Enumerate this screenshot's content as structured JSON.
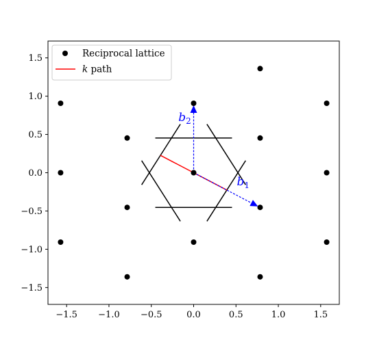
{
  "chart_data": {
    "type": "scatter",
    "xlim": [
      -1.72,
      1.72
    ],
    "ylim": [
      -1.72,
      1.72
    ],
    "xticks": [
      -1.5,
      -1.0,
      -0.5,
      0.0,
      0.5,
      1.0,
      1.5
    ],
    "yticks": [
      -1.5,
      -1.0,
      -0.5,
      0.0,
      0.5,
      1.0,
      1.5
    ],
    "xtick_labels": [
      "−1.5",
      "−1.0",
      "−0.5",
      "0.0",
      "0.5",
      "1.0",
      "1.5"
    ],
    "ytick_labels": [
      "−1.5",
      "−1.0",
      "−0.5",
      "0.0",
      "0.5",
      "1.0",
      "1.5"
    ],
    "grid": false,
    "legend": {
      "placement": "top-left",
      "entries": [
        {
          "label": "Reciprocal lattice",
          "marker": "dot",
          "color": "#000000"
        },
        {
          "label_italic": "k",
          "label_rest": " path",
          "marker": "line",
          "color": "#ff0000"
        }
      ]
    },
    "lattice_points": [
      {
        "x": -1.571,
        "y": 0.907
      },
      {
        "x": -1.571,
        "y": 0.0
      },
      {
        "x": -1.571,
        "y": -0.907
      },
      {
        "x": -0.785,
        "y": 0.453
      },
      {
        "x": -0.785,
        "y": -0.453
      },
      {
        "x": -0.785,
        "y": -1.36
      },
      {
        "x": 0.0,
        "y": 0.907
      },
      {
        "x": 0.0,
        "y": 0.0
      },
      {
        "x": 0.0,
        "y": -0.907
      },
      {
        "x": 0.785,
        "y": 1.36
      },
      {
        "x": 0.785,
        "y": 0.453
      },
      {
        "x": 0.785,
        "y": -0.453
      },
      {
        "x": 0.785,
        "y": -1.36
      },
      {
        "x": 1.571,
        "y": 0.907
      },
      {
        "x": 1.571,
        "y": 0.0
      },
      {
        "x": 1.571,
        "y": -0.907
      }
    ],
    "lattice_color": "#000000",
    "brillouin_zone_segments": [
      [
        [
          -0.453,
          0.453
        ],
        [
          0.453,
          0.453
        ]
      ],
      [
        [
          -0.453,
          -0.453
        ],
        [
          0.453,
          -0.453
        ]
      ],
      [
        [
          0.157,
          0.634
        ],
        [
          0.614,
          -0.158
        ]
      ],
      [
        [
          -0.157,
          -0.634
        ],
        [
          -0.614,
          0.158
        ]
      ],
      [
        [
          -0.157,
          0.634
        ],
        [
          -0.614,
          -0.158
        ]
      ],
      [
        [
          0.157,
          -0.634
        ],
        [
          0.614,
          0.158
        ]
      ]
    ],
    "zone_color": "#000000",
    "k_path": [
      [
        -0.393,
        0.227
      ],
      [
        0.0,
        0.0
      ],
      [
        0.393,
        -0.227
      ]
    ],
    "k_path_color": "#ff0000",
    "vectors": [
      {
        "name": "b",
        "sub": "2",
        "from": [
          0.0,
          0.0
        ],
        "to": [
          0.0,
          0.88
        ],
        "label_at": [
          -0.18,
          0.73
        ]
      },
      {
        "name": "b",
        "sub": "1",
        "from": [
          0.0,
          0.0
        ],
        "to": [
          0.76,
          -0.44
        ],
        "label_at": [
          0.51,
          -0.11
        ]
      }
    ],
    "vector_color": "#0000ff"
  }
}
